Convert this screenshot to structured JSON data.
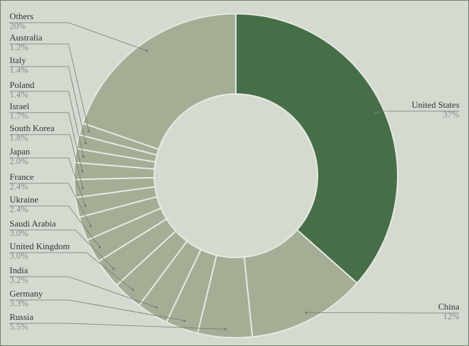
{
  "chart_data": {
    "type": "pie",
    "variant": "donut",
    "title": "",
    "slices": [
      {
        "label": "United States",
        "value_label": "37%",
        "value": 37
      },
      {
        "label": "China",
        "value_label": "12%",
        "value": 12
      },
      {
        "label": "Russia",
        "value_label": "5.5%",
        "value": 5.5
      },
      {
        "label": "Germany",
        "value_label": "3.3%",
        "value": 3.3
      },
      {
        "label": "India",
        "value_label": "3.2%",
        "value": 3.2
      },
      {
        "label": "United Kingdom",
        "value_label": "3.0%",
        "value": 3.0
      },
      {
        "label": "Saudi Arabia",
        "value_label": "3.0%",
        "value": 3.0
      },
      {
        "label": "Ukraine",
        "value_label": "2.4%",
        "value": 2.4
      },
      {
        "label": "France",
        "value_label": "2.4%",
        "value": 2.4
      },
      {
        "label": "Japan",
        "value_label": "2.0%",
        "value": 2.0
      },
      {
        "label": "South Korea",
        "value_label": "1.8%",
        "value": 1.8
      },
      {
        "label": "Israel",
        "value_label": "1.7%",
        "value": 1.7
      },
      {
        "label": "Poland",
        "value_label": "1.4%",
        "value": 1.4
      },
      {
        "label": "Italy",
        "value_label": "1.4%",
        "value": 1.4
      },
      {
        "label": "Australia",
        "value_label": "1.2%",
        "value": 1.2
      },
      {
        "label": "Others",
        "value_label": "20%",
        "value": 20
      }
    ],
    "legend": "none",
    "labels": "outside-with-leader-lines",
    "colors": {
      "highlight": "#466f47",
      "slice": "#a3ae95",
      "slice_border": "#e6eae2",
      "background": "#d4dad0",
      "hole": "#d4dad0",
      "frame": "#6a7d64",
      "leader": "#777777"
    }
  }
}
